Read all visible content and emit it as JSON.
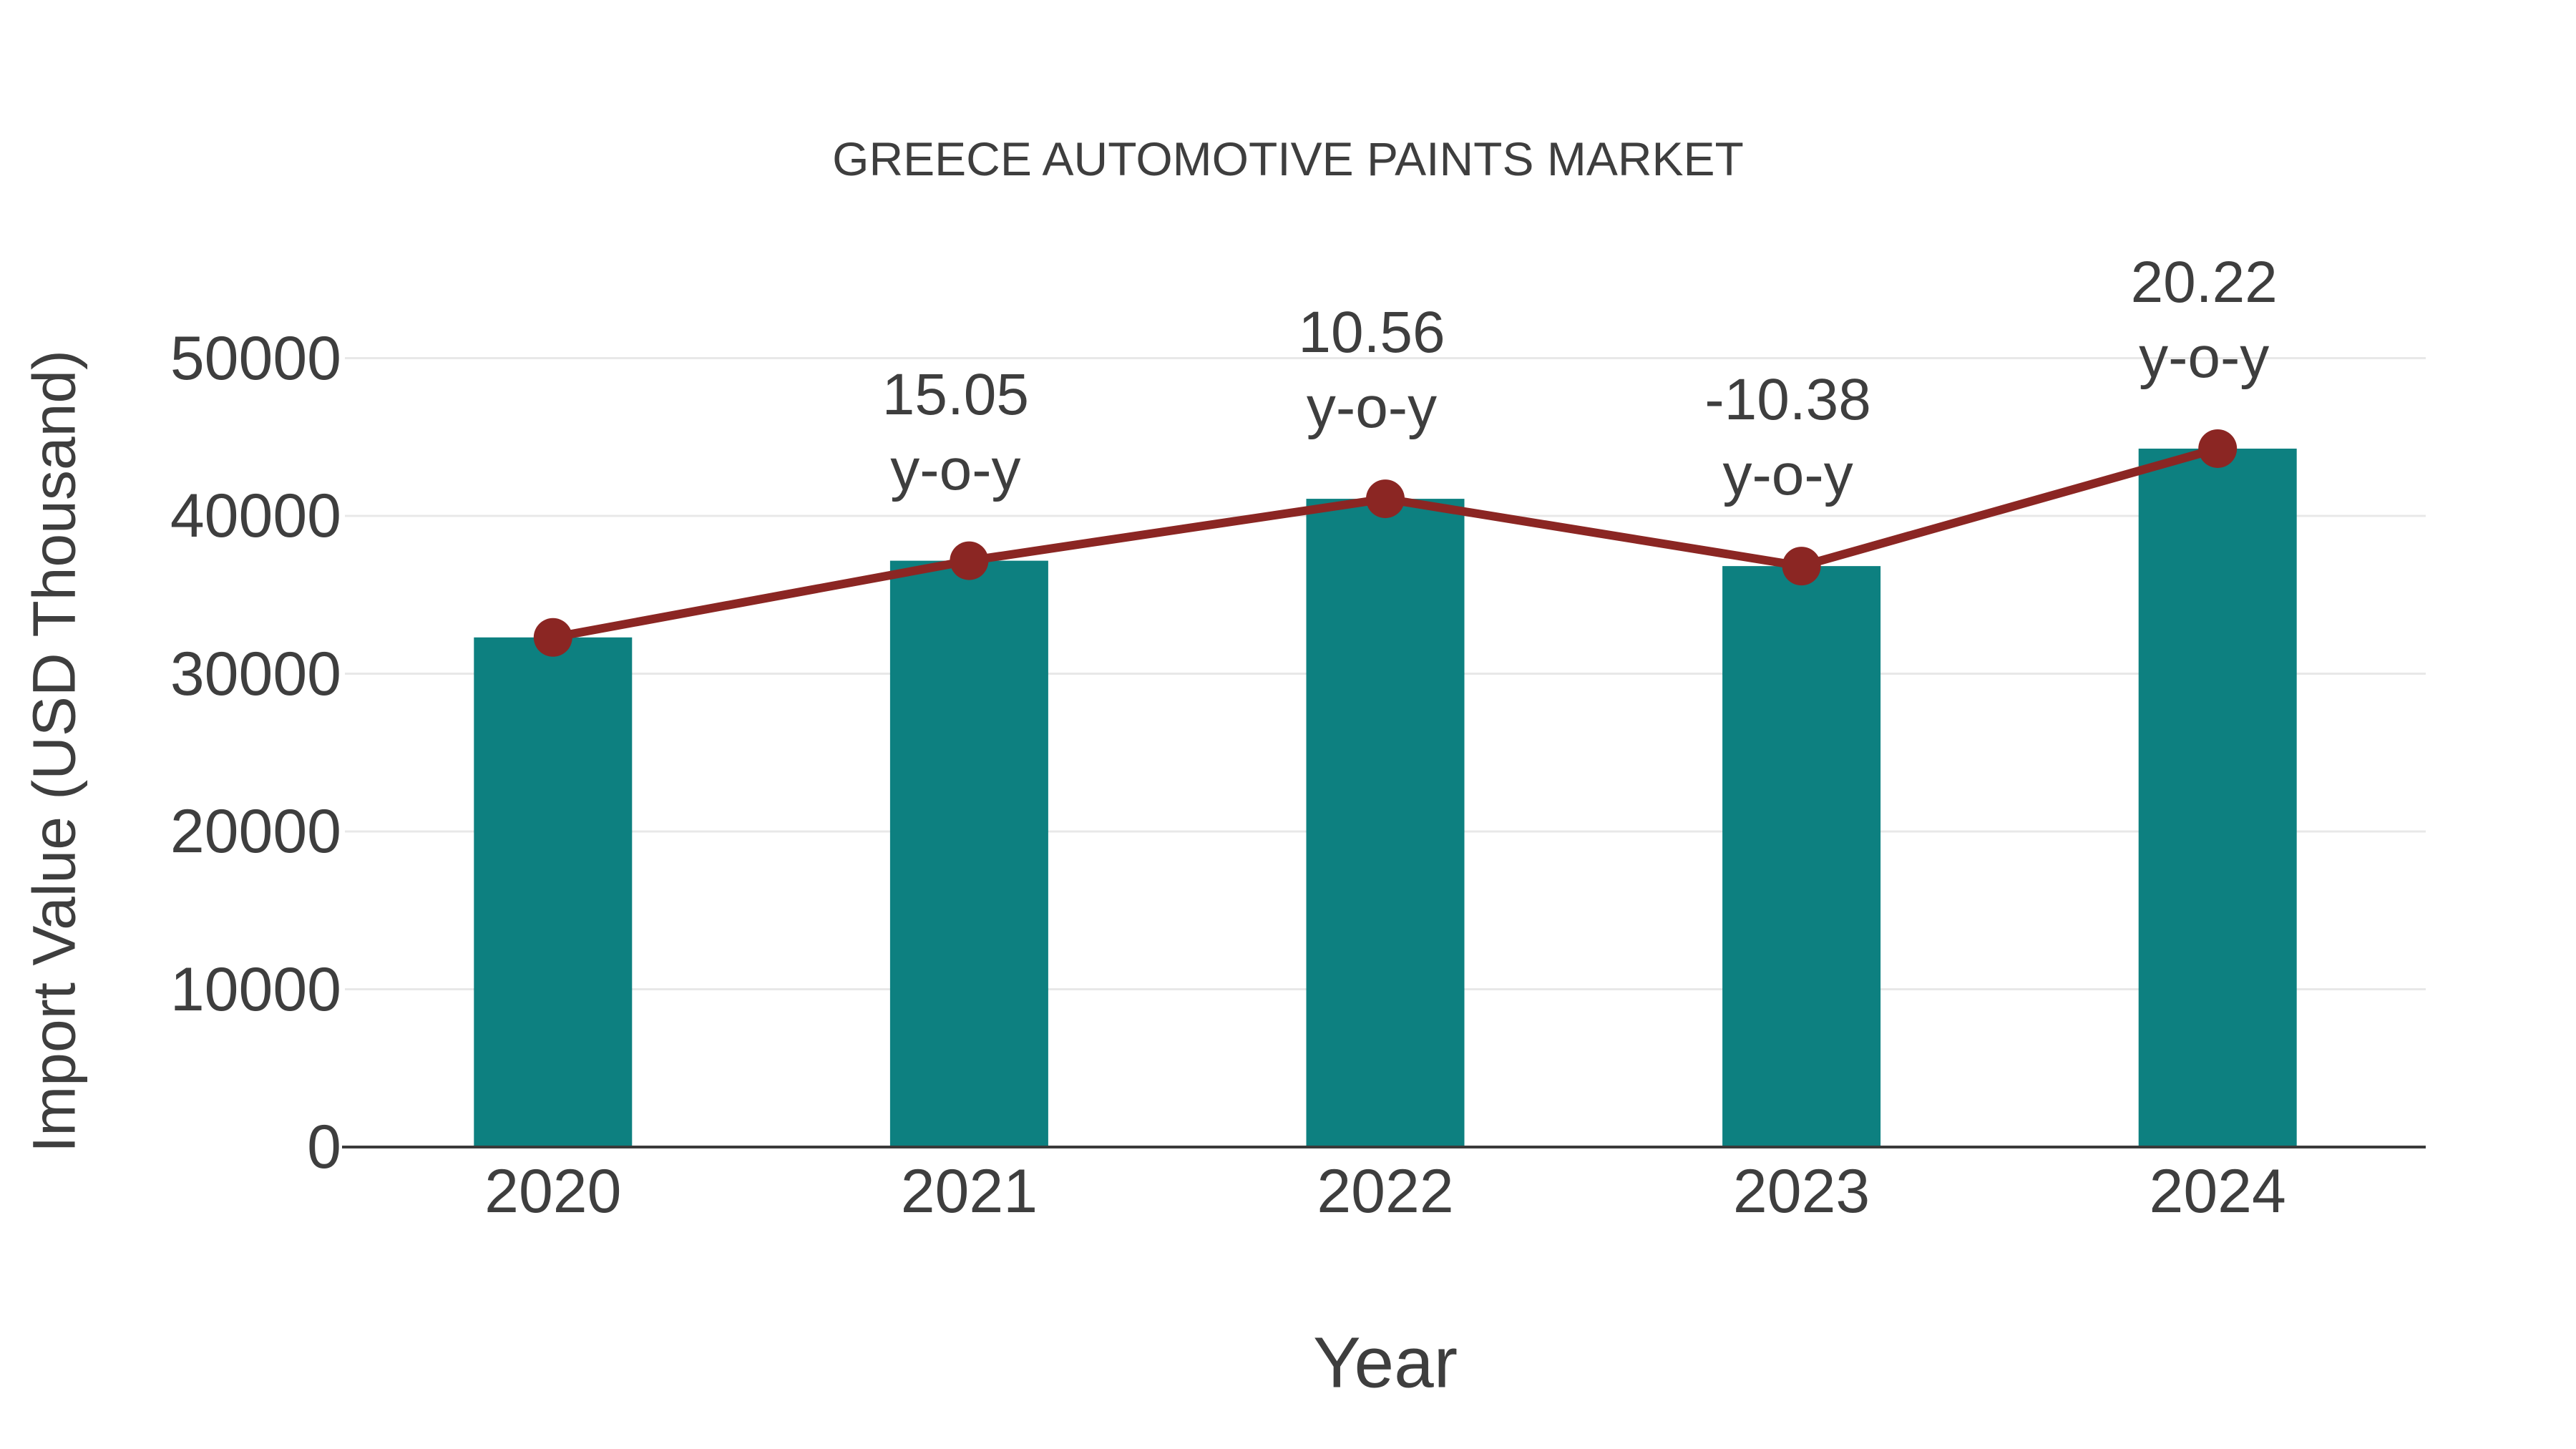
{
  "page": {
    "background": "#ffffff"
  },
  "chart_data": {
    "type": "bar",
    "title": "GREECE AUTOMOTIVE PAINTS MARKET",
    "xlabel": "Year",
    "ylabel": "Import Value (USD Thousand)",
    "categories": [
      "2020",
      "2021",
      "2022",
      "2023",
      "2024"
    ],
    "series": [
      {
        "name": "Import Value (USD Thousand)",
        "type": "bar",
        "values": [
          32300,
          37161,
          41085,
          36820,
          44265
        ],
        "color": "#0d8080"
      },
      {
        "name": "y-o-y trend line",
        "type": "line",
        "values": [
          32300,
          37161,
          41085,
          36820,
          44265
        ],
        "color": "#8b2623"
      }
    ],
    "annotations": [
      {
        "category": "2021",
        "value_label": "15.05",
        "suffix": "y-o-y"
      },
      {
        "category": "2022",
        "value_label": "10.56",
        "suffix": "y-o-y"
      },
      {
        "category": "2023",
        "value_label": "-10.38",
        "suffix": "y-o-y"
      },
      {
        "category": "2024",
        "value_label": "20.22",
        "suffix": "y-o-y"
      }
    ],
    "yticks": [
      "0",
      "10000",
      "20000",
      "30000",
      "40000",
      "50000"
    ],
    "ylim": [
      0,
      50000
    ],
    "grid": "horizontal",
    "legend_position": "none",
    "colors": {
      "bar": "#0d8080",
      "line": "#8b2623",
      "grid": "#e8e8e8",
      "axis": "#3a3a3a",
      "text": "#3e3e3e"
    }
  }
}
